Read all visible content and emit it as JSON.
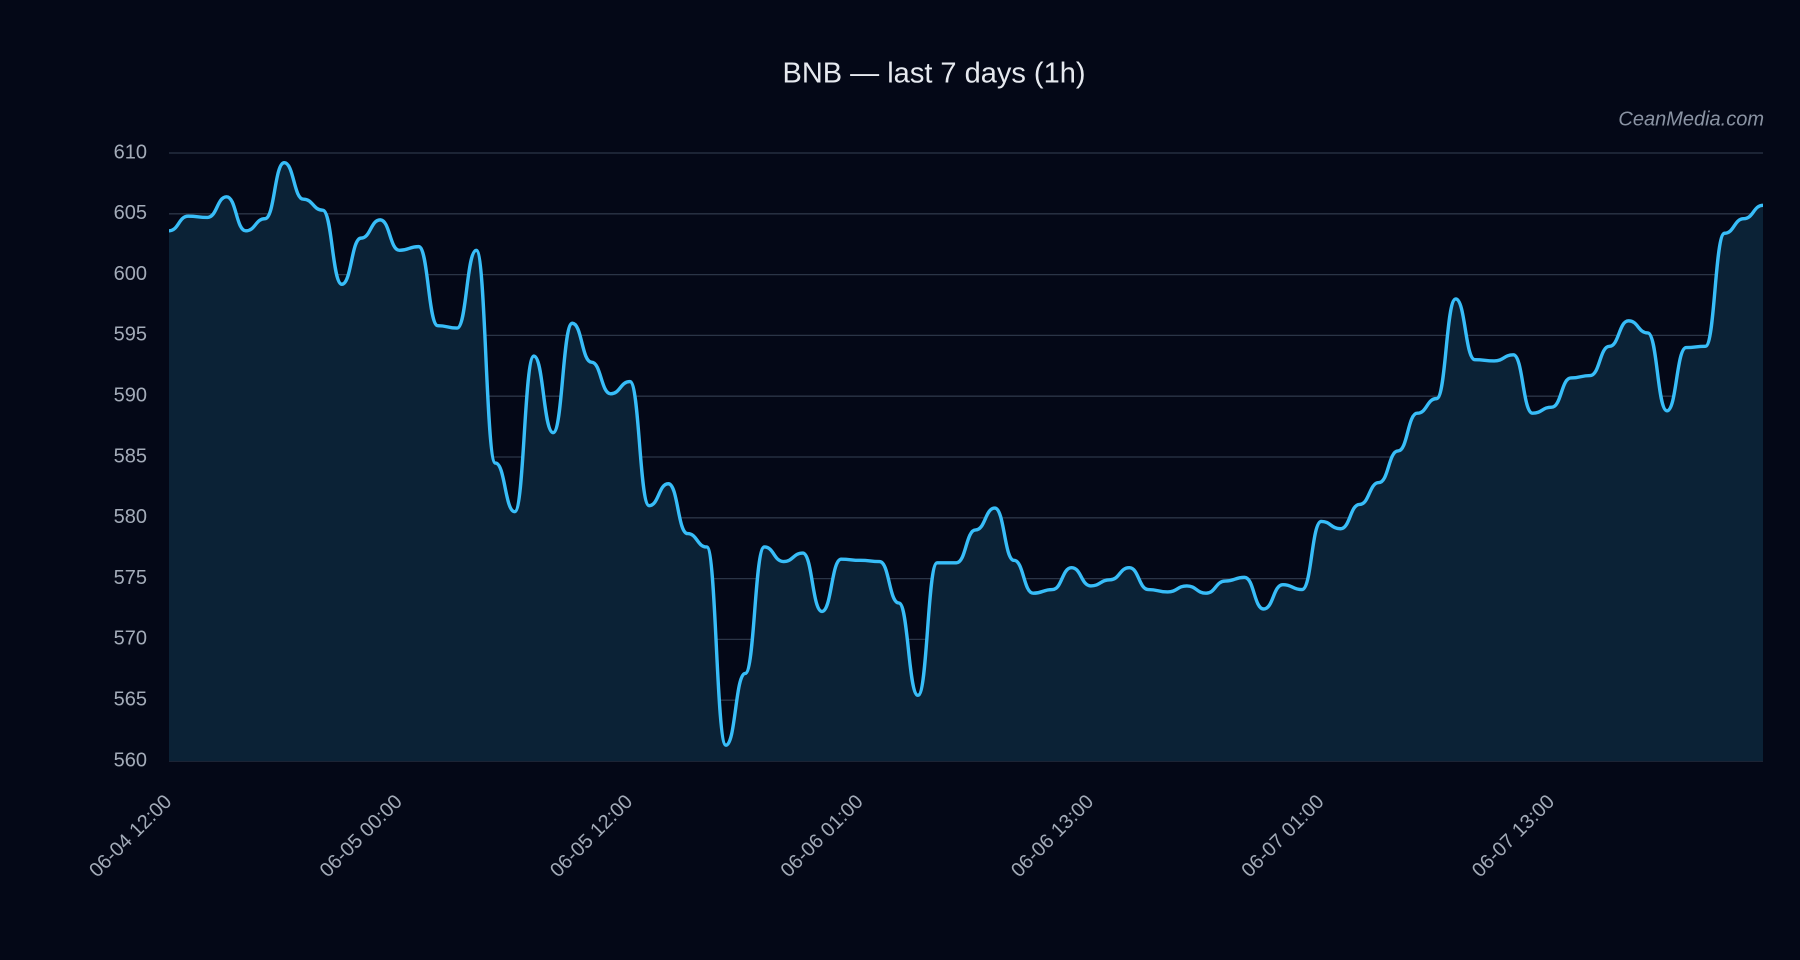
{
  "chart_data": {
    "type": "line",
    "title": "BNB — last 7 days (1h)",
    "watermark": "CeanMedia.com",
    "categories": [
      "06-04 12:00",
      null,
      null,
      null,
      null,
      null,
      null,
      null,
      null,
      null,
      null,
      null,
      "06-05 00:00",
      null,
      null,
      null,
      null,
      null,
      null,
      null,
      null,
      null,
      null,
      null,
      "06-05 12:00",
      null,
      null,
      null,
      null,
      null,
      null,
      null,
      null,
      null,
      null,
      null,
      "06-06 01:00",
      null,
      null,
      null,
      null,
      null,
      null,
      null,
      null,
      null,
      null,
      null,
      "06-06 13:00",
      null,
      null,
      null,
      null,
      null,
      null,
      null,
      null,
      null,
      null,
      null,
      "06-07 01:00",
      null,
      null,
      null,
      null,
      null,
      null,
      null,
      null,
      null,
      null,
      null,
      "06-07 13:00",
      null,
      null,
      null,
      null,
      null,
      null,
      null,
      null,
      null,
      null,
      null
    ],
    "series": [
      {
        "name": "BNB",
        "color": "#38bdf8",
        "fill_color": "#0b2236",
        "values": [
          603.6,
          604.8,
          604.7,
          606.4,
          603.6,
          604.6,
          609.2,
          606.2,
          605.3,
          599.2,
          603.0,
          604.5,
          602.0,
          602.3,
          595.8,
          595.6,
          602.0,
          584.5,
          580.5,
          593.3,
          587.0,
          596.0,
          592.8,
          590.2,
          591.2,
          581.0,
          582.8,
          578.7,
          577.6,
          561.3,
          567.2,
          577.6,
          576.4,
          577.1,
          572.3,
          576.6,
          576.5,
          576.4,
          573.0,
          565.4,
          576.3,
          576.3,
          579.0,
          580.8,
          576.5,
          573.8,
          574.1,
          575.9,
          574.4,
          574.9,
          575.9,
          574.1,
          573.9,
          574.4,
          573.8,
          574.8,
          575.1,
          572.5,
          574.5,
          574.1,
          579.7,
          579.1,
          581.1,
          582.9,
          585.5,
          588.6,
          589.8,
          598.0,
          593.0,
          592.9,
          593.4,
          588.6,
          589.1,
          591.5,
          591.7,
          594.1,
          596.2,
          595.2,
          588.8,
          594.0,
          594.1,
          603.4,
          604.6,
          605.7
        ]
      }
    ],
    "ylim": [
      560,
      610
    ],
    "yticks": [
      560,
      565,
      570,
      575,
      580,
      585,
      590,
      595,
      600,
      605,
      610
    ],
    "grid": true
  }
}
